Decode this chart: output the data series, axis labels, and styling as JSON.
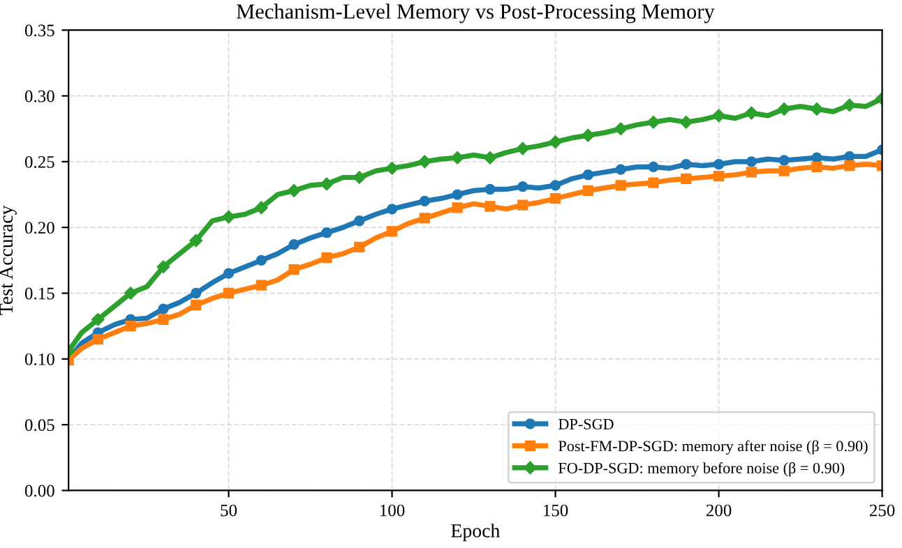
{
  "chart_data": {
    "type": "line",
    "title": "Mechanism-Level Memory vs Post-Processing Memory",
    "xlabel": "Epoch",
    "ylabel": "Test Accuracy",
    "x": [
      1,
      5,
      10,
      15,
      20,
      25,
      30,
      35,
      40,
      45,
      50,
      55,
      60,
      65,
      70,
      75,
      80,
      85,
      90,
      95,
      100,
      105,
      110,
      115,
      120,
      125,
      130,
      135,
      140,
      145,
      150,
      155,
      160,
      165,
      170,
      175,
      180,
      185,
      190,
      195,
      200,
      205,
      210,
      215,
      220,
      225,
      230,
      235,
      240,
      245,
      250
    ],
    "series": [
      {
        "name": "DP-SGD",
        "color": "#1f77b4",
        "marker": "circle",
        "values": [
          0.1,
          0.112,
          0.12,
          0.126,
          0.13,
          0.131,
          0.138,
          0.143,
          0.15,
          0.158,
          0.165,
          0.17,
          0.175,
          0.18,
          0.187,
          0.192,
          0.196,
          0.2,
          0.205,
          0.21,
          0.214,
          0.217,
          0.22,
          0.222,
          0.225,
          0.228,
          0.229,
          0.229,
          0.231,
          0.23,
          0.232,
          0.237,
          0.24,
          0.242,
          0.244,
          0.246,
          0.246,
          0.245,
          0.248,
          0.247,
          0.248,
          0.25,
          0.25,
          0.252,
          0.251,
          0.252,
          0.253,
          0.252,
          0.254,
          0.254,
          0.259
        ]
      },
      {
        "name": "Post-FM-DP-SGD: memory after noise (β = 0.90)",
        "color": "#ff7f0e",
        "marker": "square",
        "values": [
          0.099,
          0.108,
          0.115,
          0.12,
          0.125,
          0.127,
          0.13,
          0.134,
          0.141,
          0.146,
          0.15,
          0.153,
          0.156,
          0.16,
          0.168,
          0.172,
          0.177,
          0.18,
          0.185,
          0.192,
          0.197,
          0.203,
          0.207,
          0.211,
          0.215,
          0.218,
          0.216,
          0.214,
          0.217,
          0.219,
          0.222,
          0.225,
          0.228,
          0.23,
          0.232,
          0.233,
          0.234,
          0.236,
          0.237,
          0.238,
          0.239,
          0.24,
          0.242,
          0.243,
          0.243,
          0.245,
          0.246,
          0.245,
          0.247,
          0.248,
          0.247
        ]
      },
      {
        "name": "FO-DP-SGD: memory before noise (β = 0.90)",
        "color": "#2ca02c",
        "marker": "diamond",
        "values": [
          0.106,
          0.12,
          0.13,
          0.14,
          0.15,
          0.155,
          0.17,
          0.18,
          0.19,
          0.205,
          0.208,
          0.21,
          0.215,
          0.225,
          0.228,
          0.232,
          0.233,
          0.238,
          0.238,
          0.243,
          0.245,
          0.247,
          0.25,
          0.252,
          0.253,
          0.255,
          0.253,
          0.257,
          0.26,
          0.262,
          0.265,
          0.268,
          0.27,
          0.272,
          0.275,
          0.278,
          0.28,
          0.282,
          0.28,
          0.282,
          0.285,
          0.283,
          0.287,
          0.285,
          0.29,
          0.292,
          0.29,
          0.288,
          0.293,
          0.292,
          0.298
        ]
      }
    ],
    "xlim": [
      1,
      250
    ],
    "xticks": [
      50,
      100,
      150,
      200,
      250
    ],
    "ylim": [
      0,
      0.35
    ],
    "yticks": [
      {
        "value": 0,
        "label": "0.00"
      },
      {
        "value": 0.05,
        "label": "0.05"
      },
      {
        "value": 0.1,
        "label": "0.10"
      },
      {
        "value": 0.15,
        "label": "0.15"
      },
      {
        "value": 0.2,
        "label": "0.20"
      },
      {
        "value": 0.25,
        "label": "0.25"
      },
      {
        "value": 0.3,
        "label": "0.30"
      },
      {
        "value": 0.35,
        "label": "0.35"
      }
    ],
    "grid": true,
    "legend": "bottom right",
    "line_style": "solid"
  }
}
